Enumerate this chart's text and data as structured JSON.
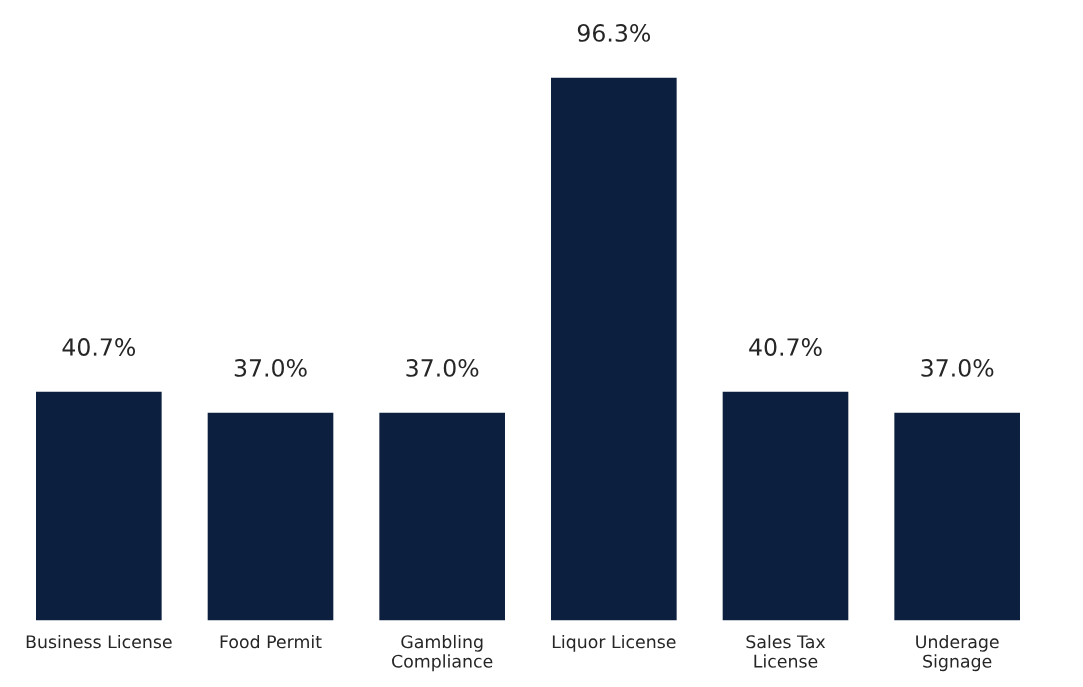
{
  "chart_data": {
    "type": "bar",
    "categories": [
      "Business License",
      "Food Permit",
      "Gambling\nCompliance",
      "Liquor License",
      "Sales Tax\nLicense",
      "Underage\nSignage"
    ],
    "values": [
      40.7,
      37.0,
      37.0,
      96.3,
      40.7,
      37.0
    ],
    "value_labels": [
      "40.7%",
      "37.0%",
      "37.0%",
      "96.3%",
      "40.7%",
      "37.0%"
    ],
    "color": "#0c1f3f",
    "grid": false
  }
}
